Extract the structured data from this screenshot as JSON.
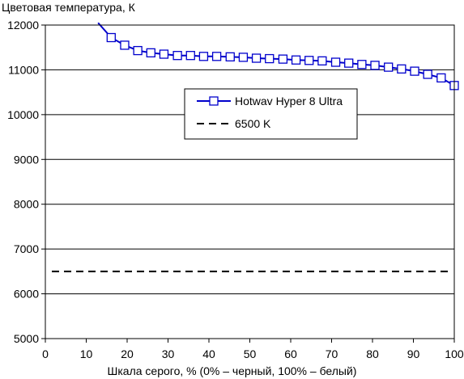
{
  "chart_data": {
    "type": "line",
    "title": "",
    "ylabel": "Цветовая температура, К",
    "xlabel": "Шкала серого, % (0% – черный, 100% – белый)",
    "xlim": [
      0,
      100
    ],
    "ylim": [
      5000,
      12000
    ],
    "x_ticks": [
      0,
      10,
      20,
      30,
      40,
      50,
      60,
      70,
      80,
      90,
      100
    ],
    "y_ticks": [
      5000,
      6000,
      7000,
      8000,
      9000,
      10000,
      11000,
      12000
    ],
    "grid": "horizontal",
    "legend_position": "top-center",
    "series": [
      {
        "name": "Hotwav Hyper 8 Ultra",
        "color": "#0000cc",
        "marker": "square",
        "points": [
          {
            "x": 12.9,
            "y": 12050
          },
          {
            "x": 16.1,
            "y": 11720
          },
          {
            "x": 19.4,
            "y": 11550
          },
          {
            "x": 22.6,
            "y": 11430
          },
          {
            "x": 25.8,
            "y": 11380
          },
          {
            "x": 29.0,
            "y": 11350
          },
          {
            "x": 32.3,
            "y": 11320
          },
          {
            "x": 35.5,
            "y": 11320
          },
          {
            "x": 38.7,
            "y": 11300
          },
          {
            "x": 41.9,
            "y": 11300
          },
          {
            "x": 45.2,
            "y": 11290
          },
          {
            "x": 48.4,
            "y": 11280
          },
          {
            "x": 51.6,
            "y": 11260
          },
          {
            "x": 54.8,
            "y": 11250
          },
          {
            "x": 58.1,
            "y": 11240
          },
          {
            "x": 61.3,
            "y": 11220
          },
          {
            "x": 64.5,
            "y": 11210
          },
          {
            "x": 67.7,
            "y": 11200
          },
          {
            "x": 71.0,
            "y": 11170
          },
          {
            "x": 74.2,
            "y": 11150
          },
          {
            "x": 77.4,
            "y": 11120
          },
          {
            "x": 80.6,
            "y": 11100
          },
          {
            "x": 83.9,
            "y": 11060
          },
          {
            "x": 87.1,
            "y": 11020
          },
          {
            "x": 90.3,
            "y": 10970
          },
          {
            "x": 93.5,
            "y": 10900
          },
          {
            "x": 96.8,
            "y": 10820
          },
          {
            "x": 100.0,
            "y": 10650
          }
        ],
        "marker_from_index": 1
      },
      {
        "name": "6500 K",
        "color": "#000000",
        "style": "dashed",
        "points": [
          {
            "x": 0,
            "y": 6500
          },
          {
            "x": 100,
            "y": 6500
          }
        ]
      }
    ]
  }
}
